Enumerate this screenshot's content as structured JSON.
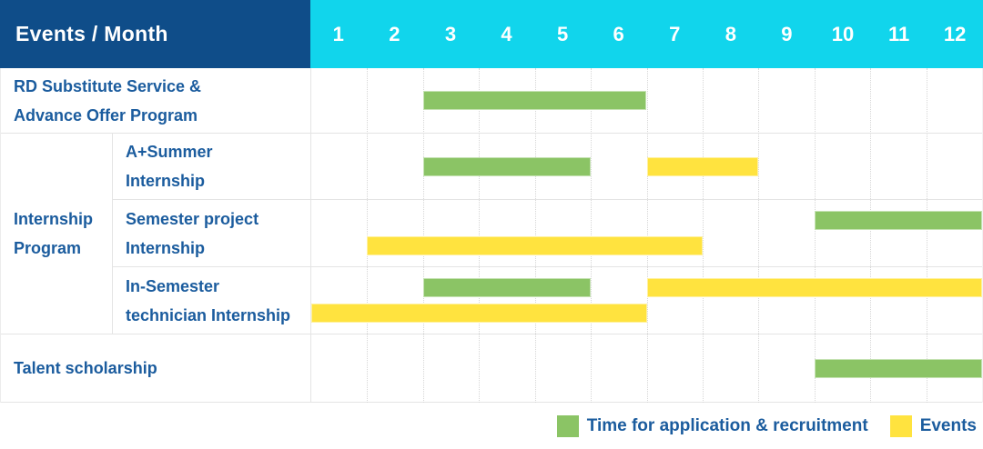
{
  "colors": {
    "header_bg": "#0f4d89",
    "months_bg": "#11d5ec",
    "header_text": "#ffffff",
    "label_text": "#1b5c9e",
    "application_green": "#8bc465",
    "event_yellow": "#ffe33f",
    "gridline": "#d6d6d6",
    "row_border": "#e4e4e4"
  },
  "header": {
    "title": "Events / Month",
    "months": [
      "1",
      "2",
      "3",
      "4",
      "5",
      "6",
      "7",
      "8",
      "9",
      "10",
      "11",
      "12"
    ]
  },
  "group": {
    "label": "Internship\nProgram"
  },
  "rows": [
    {
      "label": "RD Substitute Service &\nAdvance Offer Program",
      "lines": [
        [
          {
            "key": "application",
            "start": 3,
            "end": 6
          }
        ]
      ]
    },
    {
      "label": "A+Summer\nInternship",
      "lines": [
        [
          {
            "key": "application",
            "start": 3,
            "end": 5
          },
          {
            "key": "event",
            "start": 7,
            "end": 8
          }
        ]
      ]
    },
    {
      "label": "Semester project\nInternship",
      "lines": [
        [
          {
            "key": "application",
            "start": 10,
            "end": 12
          }
        ],
        [
          {
            "key": "event",
            "start": 2,
            "end": 7
          }
        ]
      ]
    },
    {
      "label": "In-Semester\ntechnician Internship",
      "lines": [
        [
          {
            "key": "application",
            "start": 3,
            "end": 5
          },
          {
            "key": "event",
            "start": 7,
            "end": 12
          }
        ],
        [
          {
            "key": "event",
            "start": 1,
            "end": 6
          }
        ]
      ]
    },
    {
      "label": "Talent scholarship",
      "lines": [
        [
          {
            "key": "application",
            "start": 10,
            "end": 12
          }
        ]
      ]
    }
  ],
  "legend": {
    "items": [
      {
        "key": "application",
        "label": "Time for application & recruitment",
        "color": "#8bc465"
      },
      {
        "key": "event",
        "label": "Events",
        "color": "#ffe33f"
      }
    ]
  },
  "chart_data": {
    "type": "bar",
    "subtype": "gantt",
    "title": "Events / Month",
    "x_axis": {
      "label": "Month",
      "ticks": [
        "1",
        "2",
        "3",
        "4",
        "5",
        "6",
        "7",
        "8",
        "9",
        "10",
        "11",
        "12"
      ],
      "range": [
        1,
        12
      ],
      "grid": "dotted-vertical"
    },
    "legend": {
      "position": "bottom-right",
      "entries": [
        "Time for application & recruitment",
        "Events"
      ]
    },
    "rows": [
      {
        "label": "RD Substitute Service & Advance Offer Program",
        "group": null,
        "segments": [
          {
            "series": "Time for application & recruitment",
            "start_month": 3,
            "end_month": 6
          }
        ]
      },
      {
        "label": "A+Summer Internship",
        "group": "Internship Program",
        "segments": [
          {
            "series": "Time for application & recruitment",
            "start_month": 3,
            "end_month": 5
          },
          {
            "series": "Events",
            "start_month": 7,
            "end_month": 8
          }
        ]
      },
      {
        "label": "Semester project Internship",
        "group": "Internship Program",
        "segments": [
          {
            "series": "Time for application & recruitment",
            "start_month": 10,
            "end_month": 12
          },
          {
            "series": "Events",
            "start_month": 2,
            "end_month": 7
          }
        ]
      },
      {
        "label": "In-Semester technician Internship",
        "group": "Internship Program",
        "segments": [
          {
            "series": "Time for application & recruitment",
            "start_month": 3,
            "end_month": 5
          },
          {
            "series": "Events",
            "start_month": 7,
            "end_month": 12
          },
          {
            "series": "Events",
            "start_month": 1,
            "end_month": 6
          }
        ]
      },
      {
        "label": "Talent scholarship",
        "group": null,
        "segments": [
          {
            "series": "Time for application & recruitment",
            "start_month": 10,
            "end_month": 12
          }
        ]
      }
    ]
  }
}
